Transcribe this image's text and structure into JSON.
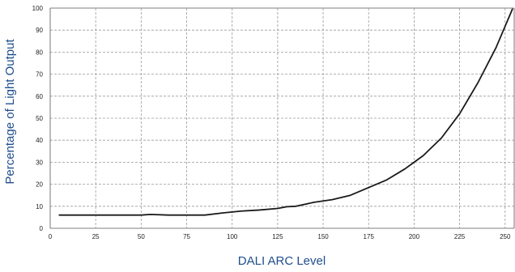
{
  "chart_data": {
    "type": "line",
    "title": "",
    "xlabel": "DALI ARC Level",
    "ylabel": "Percentage of Light Output",
    "xlim": [
      0,
      255
    ],
    "ylim": [
      0,
      100
    ],
    "x_ticks": [
      0,
      25,
      50,
      75,
      100,
      125,
      150,
      175,
      200,
      225,
      250
    ],
    "y_ticks": [
      0,
      10,
      20,
      30,
      40,
      50,
      60,
      70,
      80,
      90,
      100
    ],
    "grid": true,
    "grid_style": "dashed",
    "legend": "none",
    "colors": {
      "line": "#1a1a1a",
      "grid": "#9a9a9a",
      "axis_title": "#1f4e8c"
    },
    "series": [
      {
        "x": [
          5,
          15,
          25,
          35,
          45,
          50,
          55,
          65,
          75,
          85,
          95,
          105,
          115,
          125,
          130,
          135,
          145,
          155,
          165,
          175,
          185,
          195,
          205,
          215,
          225,
          235,
          245,
          254
        ],
        "y": [
          6,
          6,
          6,
          6,
          6,
          6,
          6.3,
          6,
          6,
          6,
          7,
          7.8,
          8.3,
          9,
          9.8,
          10,
          11.8,
          13,
          15,
          18.5,
          22,
          27,
          33,
          41,
          52,
          66,
          82,
          99.5
        ]
      }
    ]
  }
}
